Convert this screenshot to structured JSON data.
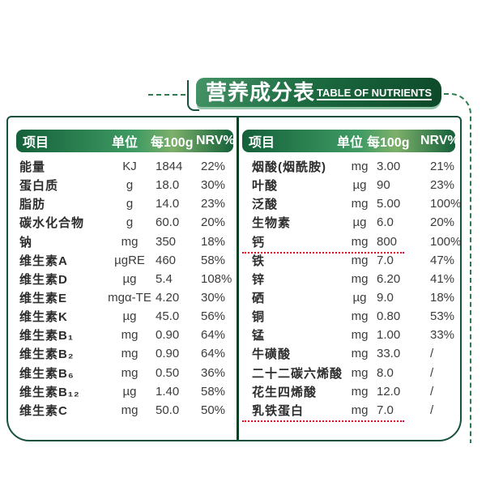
{
  "banner": {
    "title_cn": "营养成分表",
    "title_en": "TABLE OF NUTRIENTS"
  },
  "table_headers": {
    "item": "项目",
    "unit": "单位",
    "per100g": "每100g",
    "nrv": "NRV%"
  },
  "tables": {
    "left": {
      "rows": [
        {
          "item": "能量",
          "unit": "KJ",
          "per100g": "1844",
          "nrv": "22%"
        },
        {
          "item": "蛋白质",
          "unit": "g",
          "per100g": "18.0",
          "nrv": "30%"
        },
        {
          "item": "脂肪",
          "unit": "g",
          "per100g": "14.0",
          "nrv": "23%"
        },
        {
          "item": "碳水化合物",
          "unit": "g",
          "per100g": "60.0",
          "nrv": "20%"
        },
        {
          "item": "钠",
          "unit": "mg",
          "per100g": "350",
          "nrv": "18%"
        },
        {
          "item": "维生素A",
          "unit": "µgRE",
          "per100g": "460",
          "nrv": "58%"
        },
        {
          "item": "维生素D",
          "unit": "µg",
          "per100g": "5.4",
          "nrv": "108%"
        },
        {
          "item": "维生素E",
          "unit": "mgα-TE",
          "per100g": "4.20",
          "nrv": "30%"
        },
        {
          "item": "维生素K",
          "unit": "µg",
          "per100g": "45.0",
          "nrv": "56%"
        },
        {
          "item": "维生素B₁",
          "unit": "mg",
          "per100g": "0.90",
          "nrv": "64%"
        },
        {
          "item": "维生素B₂",
          "unit": "mg",
          "per100g": "0.90",
          "nrv": "64%"
        },
        {
          "item": "维生素B₆",
          "unit": "mg",
          "per100g": "0.50",
          "nrv": "36%"
        },
        {
          "item": "维生素B₁₂",
          "unit": "µg",
          "per100g": "1.40",
          "nrv": "58%"
        },
        {
          "item": "维生素C",
          "unit": "mg",
          "per100g": "50.0",
          "nrv": "50%"
        }
      ]
    },
    "right": {
      "rows": [
        {
          "item": "烟酸(烟酰胺)",
          "unit": "mg",
          "per100g": "3.00",
          "nrv": "21%"
        },
        {
          "item": "叶酸",
          "unit": "µg",
          "per100g": "90",
          "nrv": "23%"
        },
        {
          "item": "泛酸",
          "unit": "mg",
          "per100g": "5.00",
          "nrv": "100%"
        },
        {
          "item": "生物素",
          "unit": "µg",
          "per100g": "6.0",
          "nrv": "20%"
        },
        {
          "item": "钙",
          "unit": "mg",
          "per100g": "800",
          "nrv": "100%",
          "underline": true
        },
        {
          "item": "铁",
          "unit": "mg",
          "per100g": "7.0",
          "nrv": "47%"
        },
        {
          "item": "锌",
          "unit": "mg",
          "per100g": "6.20",
          "nrv": "41%"
        },
        {
          "item": "硒",
          "unit": "µg",
          "per100g": "9.0",
          "nrv": "18%"
        },
        {
          "item": "铜",
          "unit": "mg",
          "per100g": "0.80",
          "nrv": "53%"
        },
        {
          "item": "锰",
          "unit": "mg",
          "per100g": "1.00",
          "nrv": "33%"
        },
        {
          "item": "牛磺酸",
          "unit": "mg",
          "per100g": "33.0",
          "nrv": "/"
        },
        {
          "item": "二十二碳六烯酸",
          "unit": "mg",
          "per100g": "8.0",
          "nrv": "/"
        },
        {
          "item": "花生四烯酸",
          "unit": "mg",
          "per100g": "12.0",
          "nrv": "/"
        },
        {
          "item": "乳铁蛋白",
          "unit": "mg",
          "per100g": "7.0",
          "nrv": "/",
          "underline": true
        }
      ]
    }
  },
  "colors": {
    "banner_green_dark": "#0c4829",
    "banner_green_light": "#459467",
    "header_bar_green": "#3f9b63",
    "box_border_green": "#14523a",
    "divider_green": "#0b3f24",
    "dashed_line_green": "#2e7d50",
    "red_dotted_underline": "#e50021",
    "text_dark": "#2d2d2d"
  }
}
